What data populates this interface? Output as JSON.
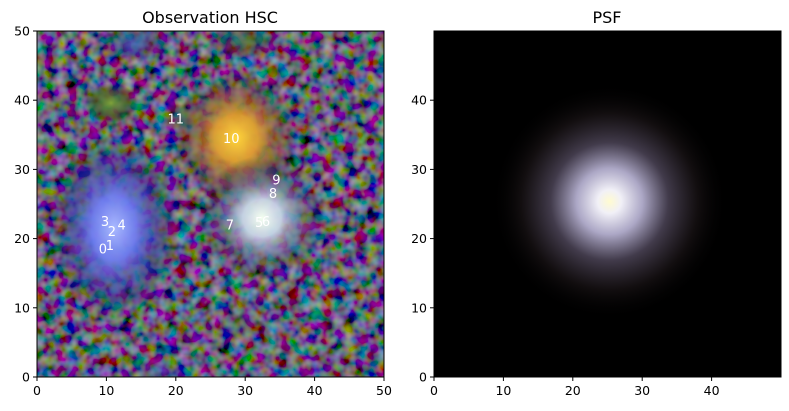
{
  "figure": {
    "left_panel": {
      "title": "Observation HSC",
      "x_ticks": [
        "0",
        "10",
        "20",
        "30",
        "40",
        "50"
      ],
      "y_ticks": [
        "0",
        "10",
        "20",
        "30",
        "40",
        "50"
      ],
      "source_labels": [
        "0",
        "1",
        "2",
        "3",
        "4",
        "5",
        "6",
        "7",
        "8",
        "9",
        "10",
        "11"
      ]
    },
    "right_panel": {
      "title": "PSF",
      "x_ticks": [
        "0",
        "10",
        "20",
        "30",
        "40"
      ],
      "y_ticks": [
        "0",
        "10",
        "20",
        "30",
        "40"
      ]
    }
  },
  "chart_data": [
    {
      "type": "heatmap",
      "title": "Observation HSC",
      "xlim": [
        0,
        50
      ],
      "ylim": [
        0,
        50
      ],
      "sources": [
        {
          "label": "0",
          "x": 9.5,
          "y": 18.5
        },
        {
          "label": "1",
          "x": 10.5,
          "y": 19.0
        },
        {
          "label": "2",
          "x": 10.8,
          "y": 21.0
        },
        {
          "label": "3",
          "x": 9.8,
          "y": 22.5
        },
        {
          "label": "4",
          "x": 12.2,
          "y": 22.0
        },
        {
          "label": "5",
          "x": 32.0,
          "y": 22.3
        },
        {
          "label": "6",
          "x": 33.0,
          "y": 22.5
        },
        {
          "label": "7",
          "x": 27.8,
          "y": 22.0
        },
        {
          "label": "8",
          "x": 34.0,
          "y": 26.5
        },
        {
          "label": "9",
          "x": 34.5,
          "y": 28.5
        },
        {
          "label": "10",
          "x": 28.0,
          "y": 34.5
        },
        {
          "label": "11",
          "x": 20.0,
          "y": 37.3
        }
      ]
    },
    {
      "type": "heatmap",
      "title": "PSF",
      "xlim": [
        0,
        50
      ],
      "ylim": [
        0,
        50
      ],
      "center": [
        25,
        25
      ]
    }
  ]
}
